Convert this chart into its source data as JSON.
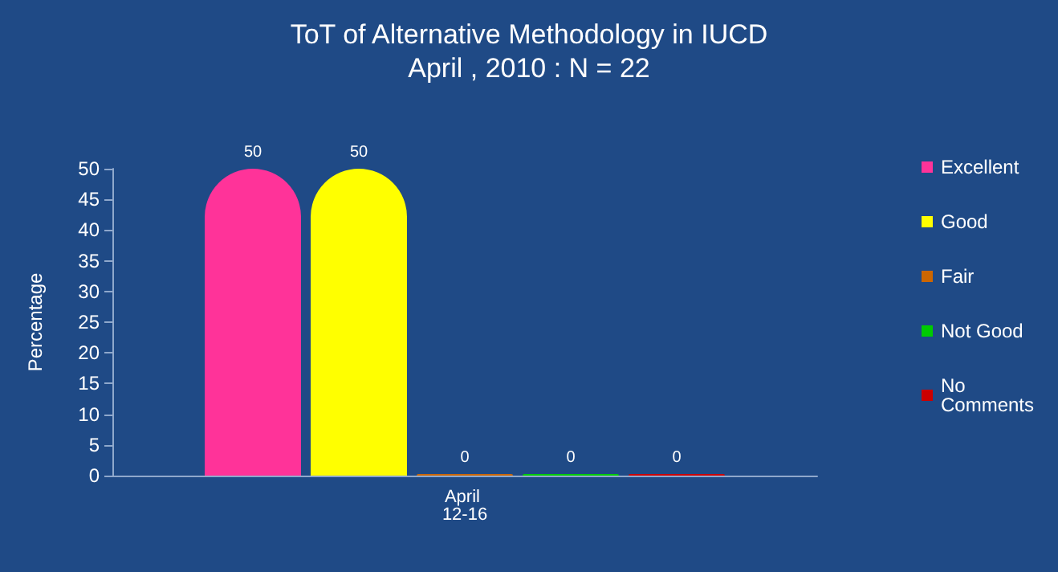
{
  "chart_data": {
    "type": "bar",
    "title": "ToT of Alternative Methodology in IUCD",
    "subtitle": "April , 2010 : N = 22",
    "ylabel": "Percentage",
    "categories": [
      "April 12-16"
    ],
    "series": [
      {
        "name": "Excellent",
        "color": "#ff3399",
        "values": [
          50
        ]
      },
      {
        "name": "Good",
        "color": "#ffff00",
        "values": [
          50
        ]
      },
      {
        "name": "Fair",
        "color": "#cc6600",
        "values": [
          0
        ]
      },
      {
        "name": "Not Good",
        "color": "#00cc00",
        "values": [
          0
        ]
      },
      {
        "name": "No Comments",
        "color": "#cc0000",
        "values": [
          0
        ]
      }
    ],
    "ylim": [
      0,
      50
    ],
    "yticks": [
      0,
      5,
      10,
      15,
      20,
      25,
      30,
      35,
      40,
      45,
      50
    ],
    "grid": false,
    "legend": "right",
    "data_labels": true
  }
}
